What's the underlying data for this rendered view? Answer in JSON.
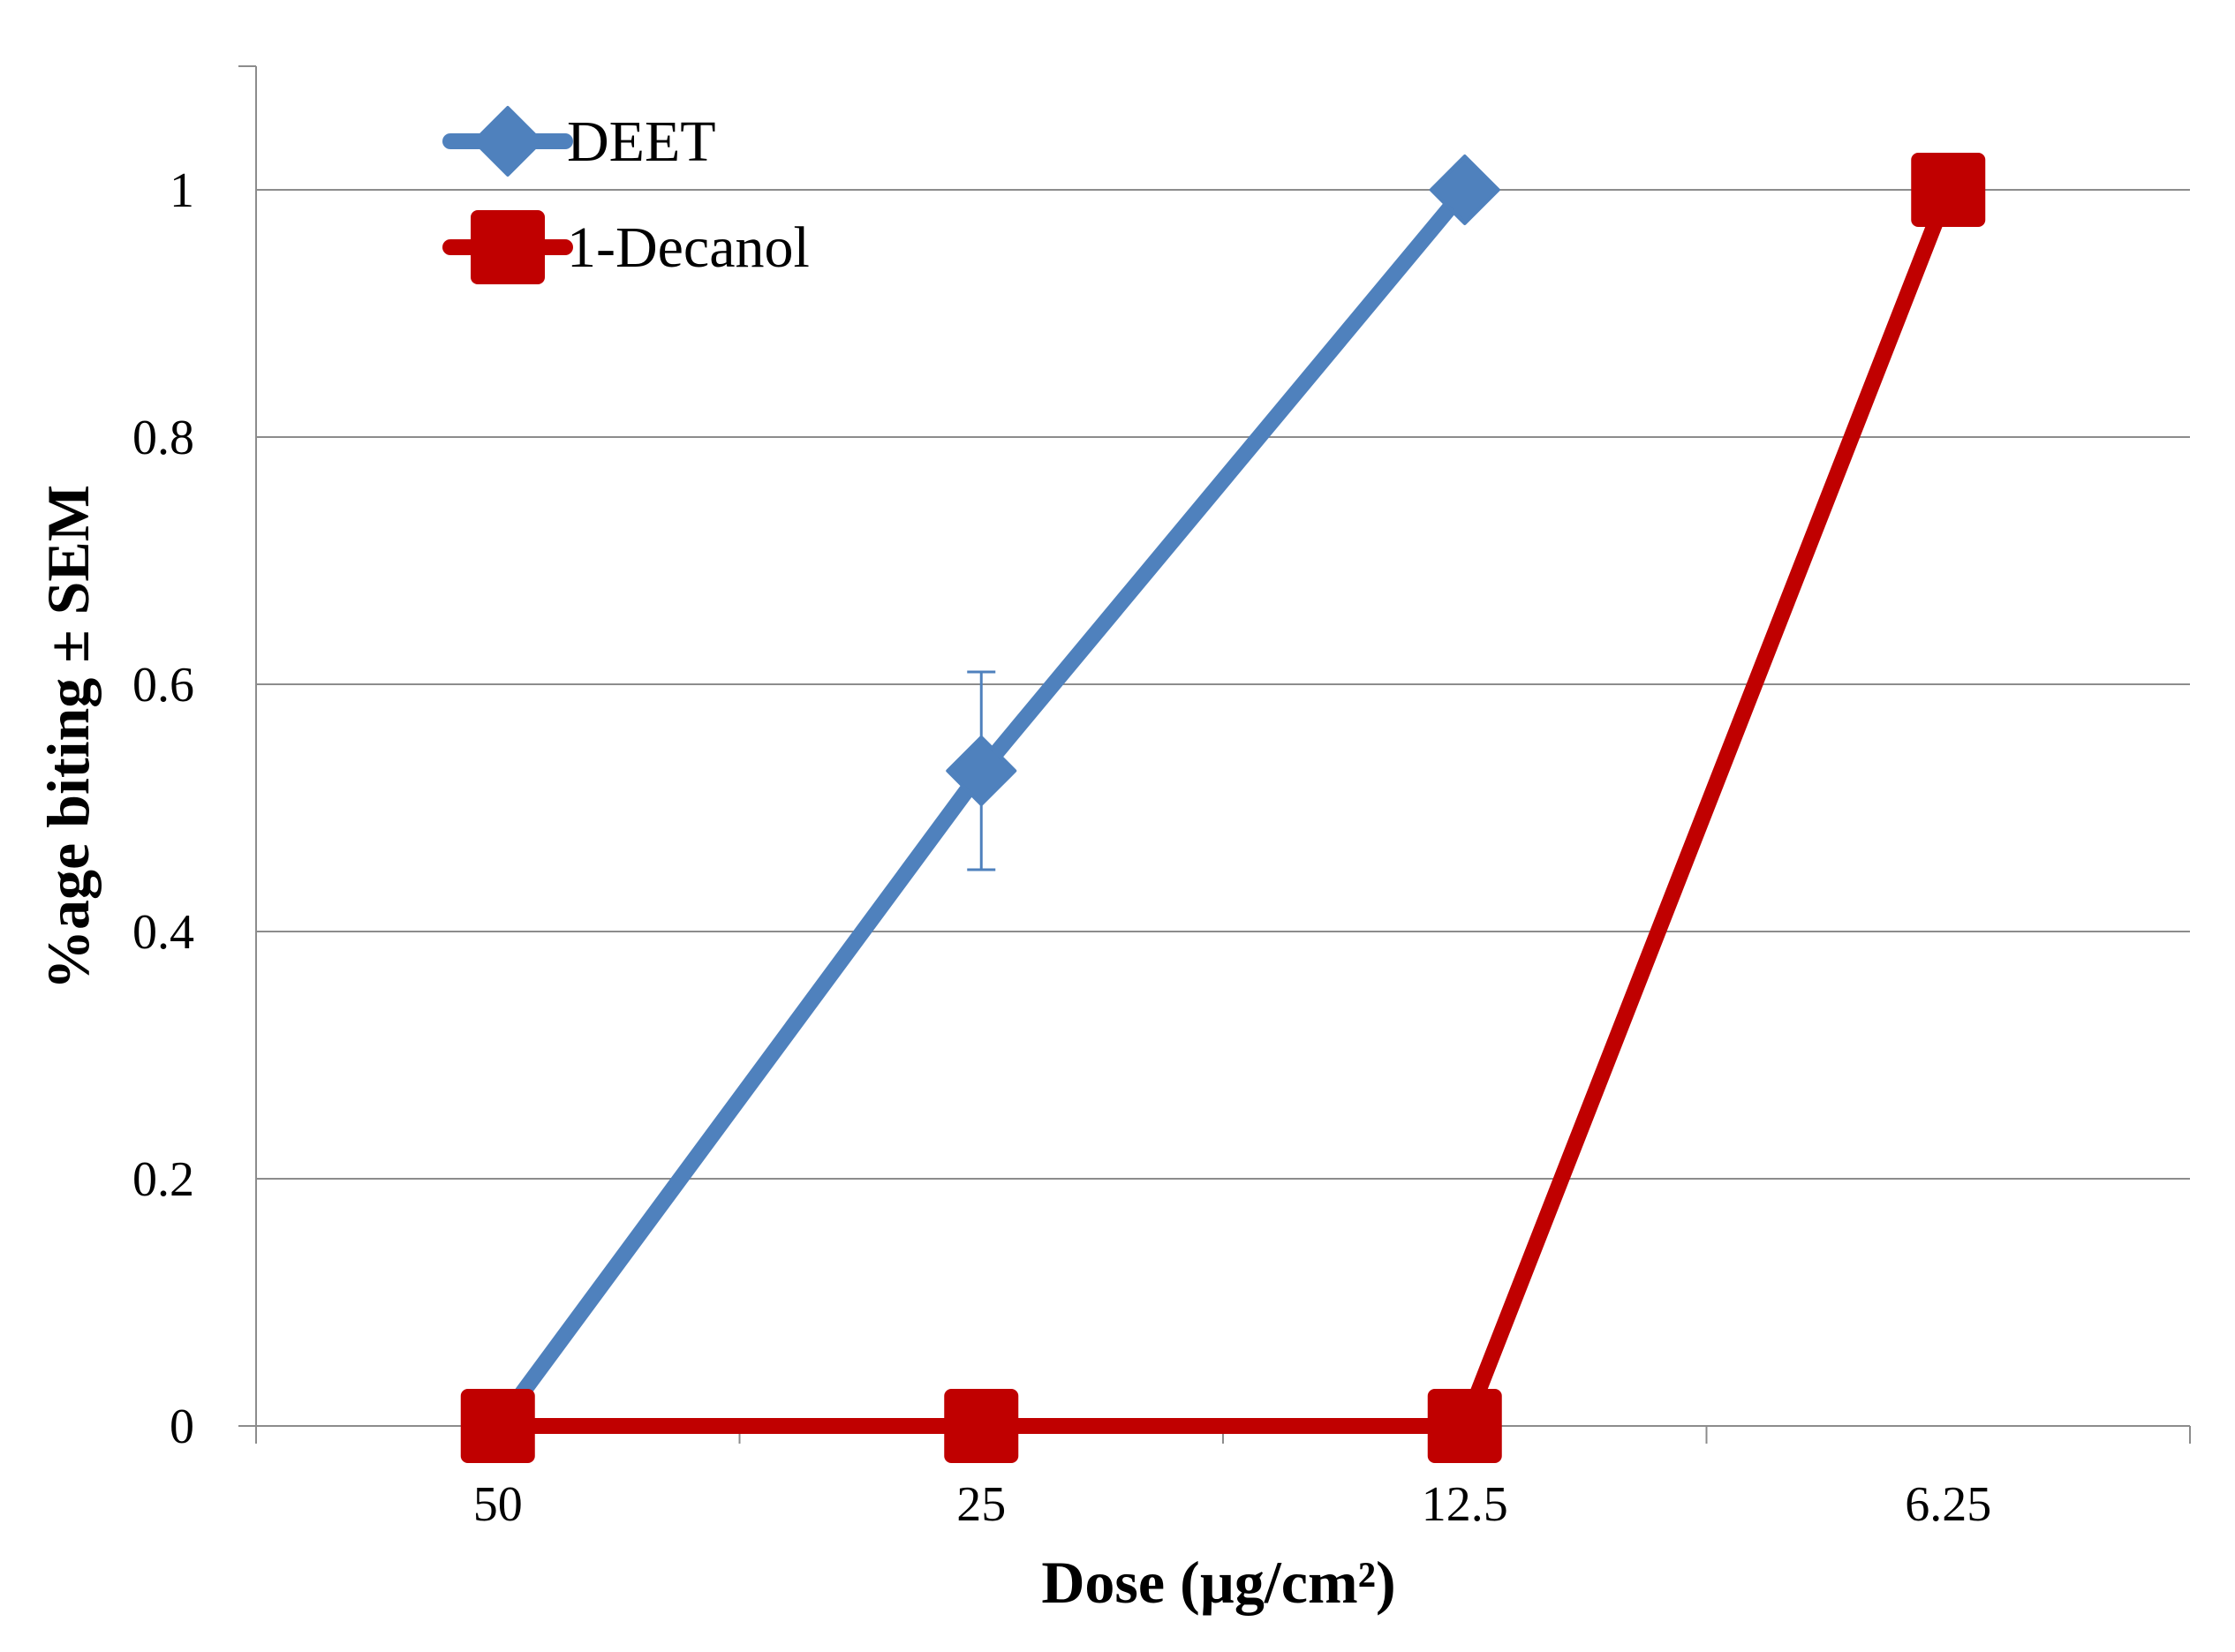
{
  "chart_data": {
    "type": "line",
    "categories": [
      "50",
      "25",
      "12.5",
      "6.25"
    ],
    "xlabel": "Dose (µg/cm²)",
    "ylabel": "%age biting ± SEM",
    "ylim": [
      0,
      1
    ],
    "yticks": [
      "0",
      "0.2",
      "0.4",
      "0.6",
      "0.8",
      "1"
    ],
    "grid": true,
    "legend": "top-left",
    "series": [
      {
        "name": "DEET",
        "values": [
          0,
          0.53,
          1,
          null
        ],
        "error": [
          null,
          0.08,
          null,
          null
        ],
        "color": "#4f81bd",
        "marker": "diamond"
      },
      {
        "name": "1-Decanol",
        "values": [
          0,
          0,
          0,
          1
        ],
        "color": "#c00000",
        "marker": "square"
      }
    ]
  }
}
